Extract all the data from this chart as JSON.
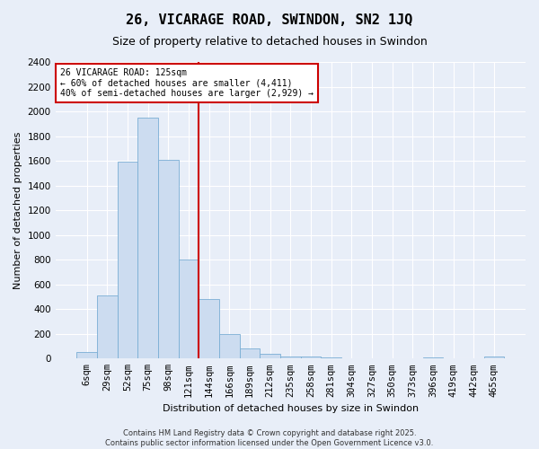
{
  "title": "26, VICARAGE ROAD, SWINDON, SN2 1JQ",
  "subtitle": "Size of property relative to detached houses in Swindon",
  "xlabel": "Distribution of detached houses by size in Swindon",
  "ylabel": "Number of detached properties",
  "categories": [
    "6sqm",
    "29sqm",
    "52sqm",
    "75sqm",
    "98sqm",
    "121sqm",
    "144sqm",
    "166sqm",
    "189sqm",
    "212sqm",
    "235sqm",
    "258sqm",
    "281sqm",
    "304sqm",
    "327sqm",
    "350sqm",
    "373sqm",
    "396sqm",
    "419sqm",
    "442sqm",
    "465sqm"
  ],
  "values": [
    55,
    510,
    1590,
    1950,
    1610,
    800,
    485,
    195,
    85,
    40,
    20,
    15,
    10,
    5,
    2,
    1,
    0,
    10,
    0,
    0,
    15
  ],
  "bar_color": "#ccdcf0",
  "bar_edgecolor": "#7aaed4",
  "vline_x_index": 5,
  "vline_color": "#cc0000",
  "annotation_text": "26 VICARAGE ROAD: 125sqm\n← 60% of detached houses are smaller (4,411)\n40% of semi-detached houses are larger (2,929) →",
  "annotation_box_facecolor": "#ffffff",
  "annotation_box_edgecolor": "#cc0000",
  "ylim": [
    0,
    2400
  ],
  "yticks": [
    0,
    200,
    400,
    600,
    800,
    1000,
    1200,
    1400,
    1600,
    1800,
    2000,
    2200,
    2400
  ],
  "background_color": "#e8eef8",
  "grid_color": "#ffffff",
  "title_fontsize": 11,
  "subtitle_fontsize": 9,
  "axis_label_fontsize": 8,
  "tick_fontsize": 7.5,
  "footer_fontsize": 6,
  "footer_text": "Contains HM Land Registry data © Crown copyright and database right 2025.\nContains public sector information licensed under the Open Government Licence v3.0."
}
